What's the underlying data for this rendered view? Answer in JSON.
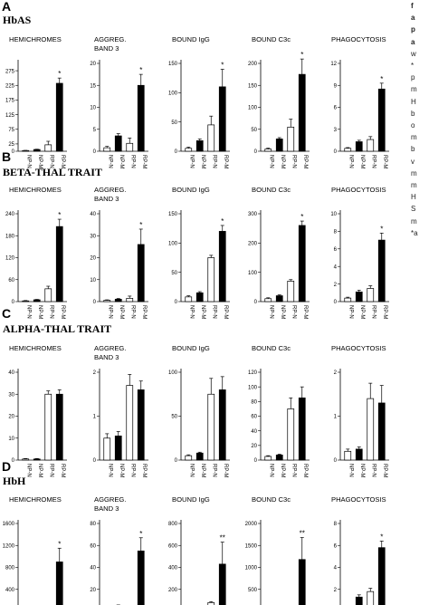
{
  "sidebar_text": [
    "f",
    "a",
    "p",
    "a",
    "w",
    "*",
    "p",
    "m",
    "H",
    "b",
    "o",
    "m",
    "b",
    "v",
    "m",
    "m",
    "H",
    "S",
    "m",
    "*a"
  ],
  "panels": [
    {
      "letter": "A",
      "title": "HbAS"
    },
    {
      "letter": "B",
      "title": "BETA-THAL TRAIT"
    },
    {
      "letter": "C",
      "title": "ALPHA-THAL TRAIT"
    },
    {
      "letter": "D",
      "title": "HbH"
    }
  ],
  "colors": {
    "filled": "#000000",
    "open": "#ffffff",
    "stroke": "#000000"
  },
  "chart_data": [
    {
      "panel": "A",
      "type": "bar",
      "title": "HEMICHROMES",
      "categories": [
        "NP-N",
        "NP-M",
        "RP-N",
        "RP-M"
      ],
      "values": [
        2,
        6,
        22,
        232
      ],
      "errors": [
        1,
        1,
        12,
        18
      ],
      "fill": [
        "open",
        "filled",
        "open",
        "filled"
      ],
      "yticks": [
        0,
        25,
        75,
        125,
        175,
        225,
        275
      ],
      "ylim": [
        0,
        300
      ],
      "annotations": [
        "",
        "",
        "",
        "*"
      ]
    },
    {
      "panel": "A",
      "type": "bar",
      "title": "AGGREG. BAND 3",
      "categories": [
        "NP-N",
        "NP-M",
        "RP-N",
        "RP-M"
      ],
      "values": [
        0.8,
        3.5,
        1.8,
        15
      ],
      "errors": [
        0.3,
        0.5,
        1.2,
        2.5
      ],
      "fill": [
        "open",
        "filled",
        "open",
        "filled"
      ],
      "yticks": [
        0,
        5,
        10,
        15,
        20
      ],
      "ylim": [
        0,
        20
      ],
      "annotations": [
        "",
        "",
        "",
        "*"
      ]
    },
    {
      "panel": "A",
      "type": "bar",
      "title": "BOUND IgG",
      "categories": [
        "NP-N",
        "NP-M",
        "RP-N",
        "RP-M"
      ],
      "values": [
        5,
        18,
        45,
        110
      ],
      "errors": [
        2,
        3,
        15,
        30
      ],
      "fill": [
        "open",
        "filled",
        "open",
        "filled"
      ],
      "yticks": [
        0,
        50,
        100,
        150
      ],
      "ylim": [
        0,
        150
      ],
      "annotations": [
        "",
        "",
        "",
        "*"
      ]
    },
    {
      "panel": "A",
      "type": "bar",
      "title": "BOUND C3c",
      "categories": [
        "NP-N",
        "NP-M",
        "RP-N",
        "RP-M"
      ],
      "values": [
        5,
        28,
        55,
        175
      ],
      "errors": [
        2,
        3,
        18,
        35
      ],
      "fill": [
        "open",
        "filled",
        "open",
        "filled"
      ],
      "yticks": [
        0,
        50,
        100,
        150,
        200
      ],
      "ylim": [
        0,
        200
      ],
      "annotations": [
        "",
        "",
        "",
        "*"
      ]
    },
    {
      "panel": "A",
      "type": "bar",
      "title": "PHAGOCYTOSIS",
      "categories": [
        "NP-N",
        "NP-M",
        "RP-N",
        "RP-M"
      ],
      "values": [
        0.4,
        1.3,
        1.6,
        8.5
      ],
      "errors": [
        0.1,
        0.2,
        0.4,
        0.8
      ],
      "fill": [
        "open",
        "filled",
        "open",
        "filled"
      ],
      "yticks": [
        0,
        3,
        6,
        9,
        12
      ],
      "ylim": [
        0,
        12
      ],
      "annotations": [
        "",
        "",
        "",
        "*"
      ]
    },
    {
      "panel": "B",
      "type": "bar",
      "title": "HEMICHROMES",
      "categories": [
        "NP-N",
        "NP-M",
        "RP-N",
        "RP-M"
      ],
      "values": [
        2,
        5,
        35,
        205
      ],
      "errors": [
        1,
        1,
        7,
        20
      ],
      "fill": [
        "open",
        "filled",
        "open",
        "filled"
      ],
      "yticks": [
        0,
        60,
        120,
        180,
        240
      ],
      "ylim": [
        0,
        240
      ],
      "annotations": [
        "",
        "",
        "",
        "*"
      ]
    },
    {
      "panel": "B",
      "type": "bar",
      "title": "AGGREG. BAND 3",
      "categories": [
        "NP-N",
        "NP-M",
        "RP-N",
        "RP-M"
      ],
      "values": [
        0.6,
        1.1,
        1.5,
        26
      ],
      "errors": [
        0.2,
        0.3,
        1,
        7
      ],
      "fill": [
        "open",
        "filled",
        "open",
        "filled"
      ],
      "yticks": [
        0,
        10,
        20,
        30,
        40
      ],
      "ylim": [
        0,
        40
      ],
      "annotations": [
        "",
        "",
        "",
        "*"
      ]
    },
    {
      "panel": "B",
      "type": "bar",
      "title": "BOUND IgG",
      "categories": [
        "NP-N",
        "NP-M",
        "RP-N",
        "RP-M"
      ],
      "values": [
        8,
        15,
        75,
        120
      ],
      "errors": [
        2,
        2,
        4,
        10
      ],
      "fill": [
        "open",
        "filled",
        "open",
        "filled"
      ],
      "yticks": [
        0,
        50,
        100,
        150
      ],
      "ylim": [
        0,
        150
      ],
      "annotations": [
        "",
        "",
        "",
        "*"
      ]
    },
    {
      "panel": "B",
      "type": "bar",
      "title": "BOUND C3c",
      "categories": [
        "NP-N",
        "NP-M",
        "RP-N",
        "RP-M"
      ],
      "values": [
        10,
        20,
        70,
        260
      ],
      "errors": [
        3,
        3,
        5,
        15
      ],
      "fill": [
        "open",
        "filled",
        "open",
        "filled"
      ],
      "yticks": [
        0,
        100,
        200,
        300
      ],
      "ylim": [
        0,
        300
      ],
      "annotations": [
        "",
        "",
        "",
        "*"
      ]
    },
    {
      "panel": "B",
      "type": "bar",
      "title": "PHAGOCYTOSIS",
      "categories": [
        "NP-N",
        "NP-M",
        "RP-N",
        "RP-M"
      ],
      "values": [
        0.4,
        1.1,
        1.5,
        7
      ],
      "errors": [
        0.1,
        0.2,
        0.3,
        0.8
      ],
      "fill": [
        "open",
        "filled",
        "open",
        "filled"
      ],
      "yticks": [
        0,
        2,
        4,
        6,
        8,
        10
      ],
      "ylim": [
        0,
        10
      ],
      "annotations": [
        "",
        "",
        "",
        "*"
      ]
    },
    {
      "panel": "C",
      "type": "bar",
      "title": "HEMICHROMES",
      "categories": [
        "NP-N",
        "NP-M",
        "RP-N",
        "RP-M"
      ],
      "values": [
        0.5,
        0.5,
        30,
        30
      ],
      "errors": [
        0.2,
        0.2,
        1.5,
        2
      ],
      "fill": [
        "open",
        "filled",
        "open",
        "filled"
      ],
      "yticks": [
        0,
        10,
        20,
        30,
        40
      ],
      "ylim": [
        0,
        40
      ],
      "annotations": [
        "",
        "",
        "",
        ""
      ]
    },
    {
      "panel": "C",
      "type": "bar",
      "title": "AGGREG. BAND 3",
      "categories": [
        "NP-N",
        "NP-M",
        "RP-N",
        "RP-M"
      ],
      "values": [
        0.5,
        0.55,
        1.7,
        1.6
      ],
      "errors": [
        0.1,
        0.1,
        0.25,
        0.2
      ],
      "fill": [
        "open",
        "filled",
        "open",
        "filled"
      ],
      "yticks": [
        0,
        1,
        2
      ],
      "ylim": [
        0,
        2
      ],
      "annotations": [
        "",
        "",
        "",
        ""
      ]
    },
    {
      "panel": "C",
      "type": "bar",
      "title": "BOUND IgG",
      "categories": [
        "NP-N",
        "NP-M",
        "RP-N",
        "RP-M"
      ],
      "values": [
        5,
        8,
        75,
        80
      ],
      "errors": [
        1,
        1,
        18,
        15
      ],
      "fill": [
        "open",
        "filled",
        "open",
        "filled"
      ],
      "yticks": [
        0,
        50,
        100
      ],
      "ylim": [
        0,
        100
      ],
      "annotations": [
        "",
        "",
        "",
        ""
      ]
    },
    {
      "panel": "C",
      "type": "bar",
      "title": "BOUND C3c",
      "categories": [
        "NP-N",
        "NP-M",
        "RP-N",
        "RP-M"
      ],
      "values": [
        5,
        7,
        70,
        85
      ],
      "errors": [
        1,
        1,
        15,
        15
      ],
      "fill": [
        "open",
        "filled",
        "open",
        "filled"
      ],
      "yticks": [
        0,
        20,
        40,
        60,
        80,
        100,
        120
      ],
      "ylim": [
        0,
        120
      ],
      "annotations": [
        "",
        "",
        "",
        ""
      ]
    },
    {
      "panel": "C",
      "type": "bar",
      "title": "PHAGOCYTOSIS",
      "categories": [
        "NP-N",
        "NP-M",
        "RP-N",
        "RP-M"
      ],
      "values": [
        0.2,
        0.25,
        1.4,
        1.3
      ],
      "errors": [
        0.05,
        0.05,
        0.35,
        0.4
      ],
      "fill": [
        "open",
        "filled",
        "open",
        "filled"
      ],
      "yticks": [
        0,
        1,
        2
      ],
      "ylim": [
        0,
        2
      ],
      "annotations": [
        "",
        "",
        "",
        ""
      ]
    },
    {
      "panel": "D",
      "type": "bar",
      "title": "HEMICHROMES",
      "categories": [
        "NP-N",
        "NP-M",
        "RP-N",
        "RP-M"
      ],
      "values": [
        30,
        50,
        70,
        900
      ],
      "errors": [
        8,
        10,
        20,
        250
      ],
      "fill": [
        "open",
        "filled",
        "open",
        "filled"
      ],
      "yticks": [
        0,
        400,
        800,
        1200,
        1600
      ],
      "ylim": [
        0,
        1600
      ],
      "annotations": [
        "",
        "",
        "",
        "*"
      ]
    },
    {
      "panel": "D",
      "type": "bar",
      "title": "AGGREG. BAND 3",
      "categories": [
        "NP-N",
        "NP-M",
        "RP-N",
        "RP-M"
      ],
      "values": [
        1,
        5,
        1.5,
        55
      ],
      "errors": [
        0.3,
        0.8,
        0.8,
        12
      ],
      "fill": [
        "open",
        "filled",
        "open",
        "filled"
      ],
      "yticks": [
        0,
        20,
        40,
        60,
        80
      ],
      "ylim": [
        0,
        80
      ],
      "annotations": [
        "",
        "",
        "",
        "*"
      ]
    },
    {
      "panel": "D",
      "type": "bar",
      "title": "BOUND IgG",
      "categories": [
        "NP-N",
        "NP-M",
        "RP-N",
        "RP-M"
      ],
      "values": [
        10,
        20,
        80,
        430
      ],
      "errors": [
        3,
        4,
        8,
        200
      ],
      "fill": [
        "open",
        "filled",
        "open",
        "filled"
      ],
      "yticks": [
        0,
        200,
        400,
        600,
        800
      ],
      "ylim": [
        0,
        800
      ],
      "annotations": [
        "",
        "",
        "",
        "**"
      ]
    },
    {
      "panel": "D",
      "type": "bar",
      "title": "BOUND C3c",
      "categories": [
        "NP-N",
        "NP-M",
        "RP-N",
        "RP-M"
      ],
      "values": [
        20,
        50,
        80,
        1180
      ],
      "errors": [
        6,
        8,
        12,
        500
      ],
      "fill": [
        "open",
        "filled",
        "open",
        "filled"
      ],
      "yticks": [
        0,
        500,
        1000,
        1500,
        2000
      ],
      "ylim": [
        0,
        2000
      ],
      "annotations": [
        "",
        "",
        "",
        "**"
      ]
    },
    {
      "panel": "D",
      "type": "bar",
      "title": "PHAGOCYTOSIS",
      "categories": [
        "NP-N",
        "NP-M",
        "RP-N",
        "RP-M"
      ],
      "values": [
        0.4,
        1.3,
        1.8,
        5.8
      ],
      "errors": [
        0.1,
        0.2,
        0.3,
        0.6
      ],
      "fill": [
        "open",
        "filled",
        "open",
        "filled"
      ],
      "yticks": [
        0,
        2,
        4,
        6,
        8
      ],
      "ylim": [
        0,
        8
      ],
      "annotations": [
        "",
        "",
        "",
        "*"
      ]
    }
  ]
}
